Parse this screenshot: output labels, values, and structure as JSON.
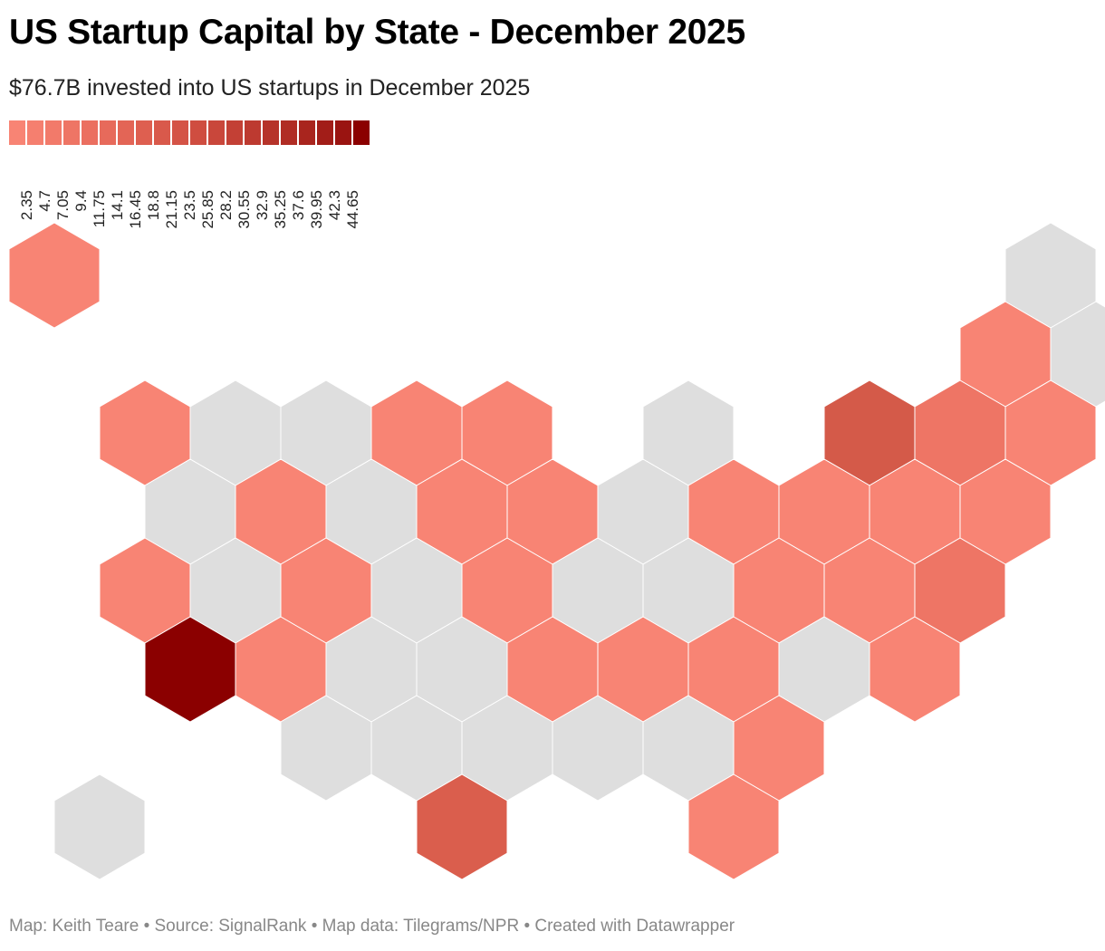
{
  "header": {
    "title": "US Startup Capital by State - December 2025",
    "subtitle": "$76.7B invested into US startups in December 2025"
  },
  "legend": {
    "colors": [
      "#f88474",
      "#f57f6f",
      "#f27a6a",
      "#ee7565",
      "#eb6f60",
      "#e76a5b",
      "#e36556",
      "#de5f50",
      "#d9594b",
      "#d45346",
      "#cf4d40",
      "#c9473b",
      "#c34035",
      "#bd3a30",
      "#b6332a",
      "#b02c24",
      "#a9251e",
      "#a21d18",
      "#9a1411",
      "#8b0000"
    ],
    "labels": [
      "2.35",
      "4.7",
      "7.05",
      "9.4",
      "11.75",
      "14.1",
      "16.45",
      "18.8",
      "21.15",
      "23.5",
      "25.85",
      "28.2",
      "30.55",
      "32.9",
      "35.25",
      "37.6",
      "39.95",
      "42.3",
      "44.65"
    ]
  },
  "map": {
    "no_data_color": "#dedede",
    "hexes": [
      {
        "row": 0,
        "col": 0,
        "color": "#f88474"
      },
      {
        "row": 0,
        "col": 11,
        "color": "#dedede"
      },
      {
        "row": 1,
        "col": 10,
        "color": "#f88474"
      },
      {
        "row": 1,
        "col": 11,
        "color": "#dedede"
      },
      {
        "row": 2,
        "col": 1,
        "color": "#f88474"
      },
      {
        "row": 2,
        "col": 2,
        "color": "#dedede"
      },
      {
        "row": 2,
        "col": 3,
        "color": "#dedede"
      },
      {
        "row": 2,
        "col": 4,
        "color": "#f88474"
      },
      {
        "row": 2,
        "col": 5,
        "color": "#f88474"
      },
      {
        "row": 2,
        "col": 7,
        "color": "#dedede"
      },
      {
        "row": 2,
        "col": 9,
        "color": "#d45a49"
      },
      {
        "row": 2,
        "col": 10,
        "color": "#ee7565"
      },
      {
        "row": 2,
        "col": 11,
        "color": "#f88474"
      },
      {
        "row": 3,
        "col": 1,
        "color": "#dedede"
      },
      {
        "row": 3,
        "col": 2,
        "color": "#f88474"
      },
      {
        "row": 3,
        "col": 3,
        "color": "#dedede"
      },
      {
        "row": 3,
        "col": 4,
        "color": "#f88474"
      },
      {
        "row": 3,
        "col": 5,
        "color": "#f88474"
      },
      {
        "row": 3,
        "col": 6,
        "color": "#dedede"
      },
      {
        "row": 3,
        "col": 7,
        "color": "#f88474"
      },
      {
        "row": 3,
        "col": 8,
        "color": "#f88474"
      },
      {
        "row": 3,
        "col": 9,
        "color": "#f88474"
      },
      {
        "row": 3,
        "col": 10,
        "color": "#f88474"
      },
      {
        "row": 4,
        "col": 1,
        "color": "#f88474"
      },
      {
        "row": 4,
        "col": 2,
        "color": "#dedede"
      },
      {
        "row": 4,
        "col": 3,
        "color": "#f88474"
      },
      {
        "row": 4,
        "col": 4,
        "color": "#dedede"
      },
      {
        "row": 4,
        "col": 5,
        "color": "#f88474"
      },
      {
        "row": 4,
        "col": 6,
        "color": "#dedede"
      },
      {
        "row": 4,
        "col": 7,
        "color": "#dedede"
      },
      {
        "row": 4,
        "col": 8,
        "color": "#f88474"
      },
      {
        "row": 4,
        "col": 9,
        "color": "#f88474"
      },
      {
        "row": 4,
        "col": 10,
        "color": "#ee7565"
      },
      {
        "row": 5,
        "col": 1,
        "color": "#8b0000"
      },
      {
        "row": 5,
        "col": 2,
        "color": "#f88474"
      },
      {
        "row": 5,
        "col": 3,
        "color": "#dedede"
      },
      {
        "row": 5,
        "col": 4,
        "color": "#dedede"
      },
      {
        "row": 5,
        "col": 5,
        "color": "#f88474"
      },
      {
        "row": 5,
        "col": 6,
        "color": "#f88474"
      },
      {
        "row": 5,
        "col": 7,
        "color": "#f88474"
      },
      {
        "row": 5,
        "col": 8,
        "color": "#dedede"
      },
      {
        "row": 5,
        "col": 9,
        "color": "#f88474"
      },
      {
        "row": 6,
        "col": 3,
        "color": "#dedede"
      },
      {
        "row": 6,
        "col": 4,
        "color": "#dedede"
      },
      {
        "row": 6,
        "col": 5,
        "color": "#dedede"
      },
      {
        "row": 6,
        "col": 6,
        "color": "#dedede"
      },
      {
        "row": 6,
        "col": 7,
        "color": "#dedede"
      },
      {
        "row": 6,
        "col": 8,
        "color": "#f88474"
      },
      {
        "row": 7,
        "col": 0,
        "color": "#dedede"
      },
      {
        "row": 7,
        "col": 4,
        "color": "#da5e4d"
      },
      {
        "row": 7,
        "col": 7,
        "color": "#f88474"
      }
    ]
  },
  "footer": {
    "credit": "Map: Keith Teare • Source: SignalRank • Map data: Tilegrams/NPR • Created with Datawrapper"
  }
}
